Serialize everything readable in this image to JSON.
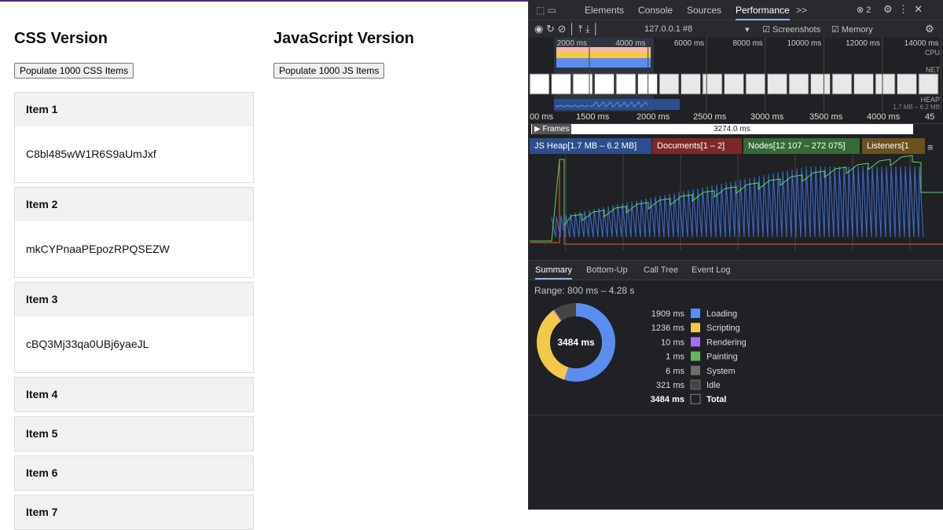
{
  "page": {
    "css_title": "CSS Version",
    "css_button": "Populate 1000 CSS Items",
    "js_title": "JavaScript Version",
    "js_button": "Populate 1000 JS Items"
  },
  "items": [
    {
      "title": "Item 1",
      "body": "C8bl485wW1R6S9aUmJxf"
    },
    {
      "title": "Item 2",
      "body": "mkCYPnaaPEpozRPQSEZW"
    },
    {
      "title": "Item 3",
      "body": "cBQ3Mj33qa0UBj6yaeJL"
    },
    {
      "title": "Item 4"
    },
    {
      "title": "Item 5"
    },
    {
      "title": "Item 6"
    },
    {
      "title": "Item 7"
    }
  ],
  "devtools": {
    "tabs": [
      "Elements",
      "Console",
      "Sources",
      "Performance"
    ],
    "error_count": 2,
    "url": "127.0.0.1 #8",
    "screenshots": "Screenshots",
    "memory": "Memory",
    "overview_ticks": [
      "2000 ms",
      "4000 ms",
      "6000 ms",
      "8000 ms",
      "10000 ms",
      "12000 ms",
      "14000 ms"
    ],
    "cpu": "CPU",
    "net": "NET",
    "heap": "HEAP",
    "heap_range": "1.7 MB – 6.2 MB",
    "ruler_ticks": [
      "00 ms",
      "1500 ms",
      "2000 ms",
      "2500 ms",
      "3000 ms",
      "3500 ms",
      "4000 ms",
      "45"
    ],
    "frames": "Frames",
    "frame_time": "3274.0 ms",
    "counters": [
      "JS Heap[1.7 MB – 6.2 MB]",
      "Documents[1 – 2]",
      "Nodes[12 107 – 272 075]",
      "Listeners[1"
    ],
    "bottom_tabs": [
      "Summary",
      "Bottom-Up",
      "Call Tree",
      "Event Log"
    ],
    "range": "Range: 800 ms – 4.28 s"
  },
  "chart_data": {
    "type": "pie",
    "categories": [
      "Loading",
      "Scripting",
      "Rendering",
      "Painting",
      "System",
      "Idle"
    ],
    "values": [
      1909,
      1236,
      10,
      1,
      6,
      321
    ],
    "value_labels": [
      "1909 ms",
      "1236 ms",
      "10 ms",
      "1 ms",
      "6 ms",
      "321 ms"
    ],
    "colors": [
      "#5b8def",
      "#f2c94c",
      "#a56ff0",
      "#5fb760",
      "#6e6e6e",
      "#454545"
    ],
    "total": {
      "name": "Total",
      "value": 3484,
      "value_label": "3484 ms"
    }
  }
}
